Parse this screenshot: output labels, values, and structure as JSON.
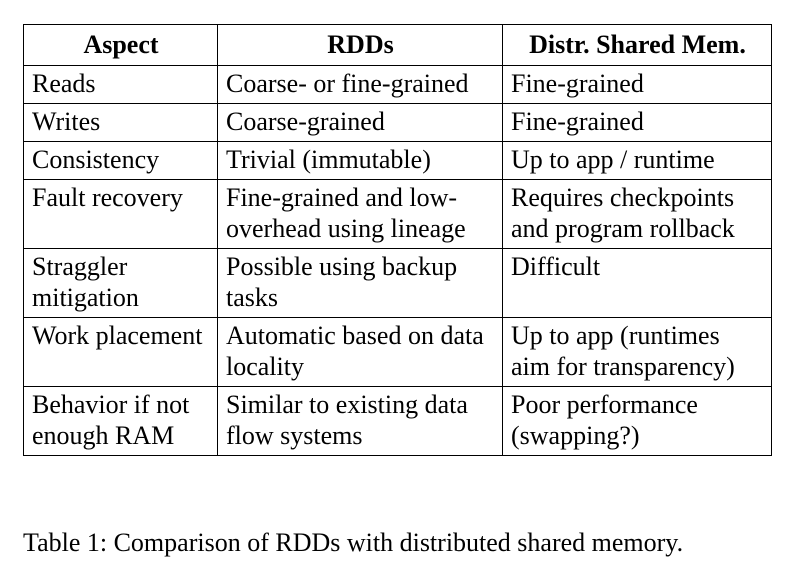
{
  "table": {
    "headers": [
      "Aspect",
      "RDDs",
      "Distr. Shared Mem."
    ],
    "rows": [
      [
        "Reads",
        "Coarse- or fine-grained",
        "Fine-grained"
      ],
      [
        "Writes",
        "Coarse-grained",
        "Fine-grained"
      ],
      [
        "Consistency",
        "Trivial (immutable)",
        "Up to app / runtime"
      ],
      [
        "Fault recovery",
        "Fine-grained and low-overhead using lineage",
        "Requires checkpoints and program rollback"
      ],
      [
        "Straggler mitigation",
        "Possible using backup tasks",
        "Difficult"
      ],
      [
        "Work placement",
        "Automatic based on data locality",
        "Up to app (runtimes aim for transparency)"
      ],
      [
        "Behavior if not enough RAM",
        "Similar to existing data flow systems",
        "Poor performance (swapping?)"
      ]
    ]
  },
  "caption": "Table 1: Comparison of RDDs with distributed shared memory."
}
